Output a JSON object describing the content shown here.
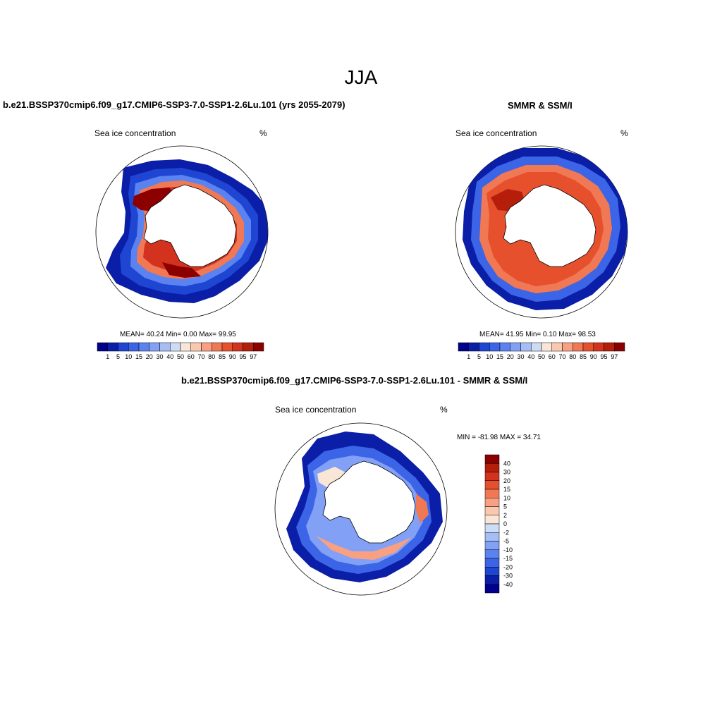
{
  "figure": {
    "title": "JJA",
    "panels": [
      {
        "title": "b.e21.BSSP370cmip6.f09_g17.CMIP6-SSP3-7.0-SSP1-2.6Lu.101 (yrs 2055-2079)",
        "left_label": "Sea ice concentration",
        "right_label": "%",
        "stats": "MEAN=  40.24  Min=   0.00  Max=  99.95"
      },
      {
        "title": "SMMR & SSM/I",
        "left_label": "Sea ice concentration",
        "right_label": "%",
        "stats": "MEAN=  41.95  Min=   0.10  Max=  98.53"
      },
      {
        "title": "b.e21.BSSP370cmip6.f09_g17.CMIP6-SSP3-7.0-SSP1-2.6Lu.101 - SMMR & SSM/I",
        "left_label": "Sea ice concentration",
        "right_label": "%",
        "stats": "MIN = -81.98 MAX =  34.71"
      }
    ],
    "colorbar_abs": {
      "labels": [
        "1",
        "5",
        "10",
        "15",
        "20",
        "30",
        "40",
        "50",
        "60",
        "70",
        "80",
        "85",
        "90",
        "95",
        "97"
      ],
      "colors": [
        "#00008c",
        "#0a1ea8",
        "#1e46d2",
        "#3c64e6",
        "#5a82f0",
        "#82a0f5",
        "#a5bef5",
        "#cddcf5",
        "#fae6d7",
        "#fac8af",
        "#faa082",
        "#f07855",
        "#e6502d",
        "#d2321e",
        "#b41e0a",
        "#8c0000"
      ]
    },
    "colorbar_diff": {
      "labels": [
        "40",
        "30",
        "20",
        "15",
        "10",
        "5",
        "2",
        "0",
        "-2",
        "-5",
        "-10",
        "-15",
        "-20",
        "-30",
        "-40"
      ],
      "colors": [
        "#8c0000",
        "#b41e0a",
        "#d2321e",
        "#e6502d",
        "#f07855",
        "#faa082",
        "#fac8af",
        "#fae6d7",
        "#cddcf5",
        "#a5bef5",
        "#82a0f5",
        "#5a82f0",
        "#3c64e6",
        "#1e46d2",
        "#0a1ea8",
        "#00008c"
      ]
    }
  }
}
